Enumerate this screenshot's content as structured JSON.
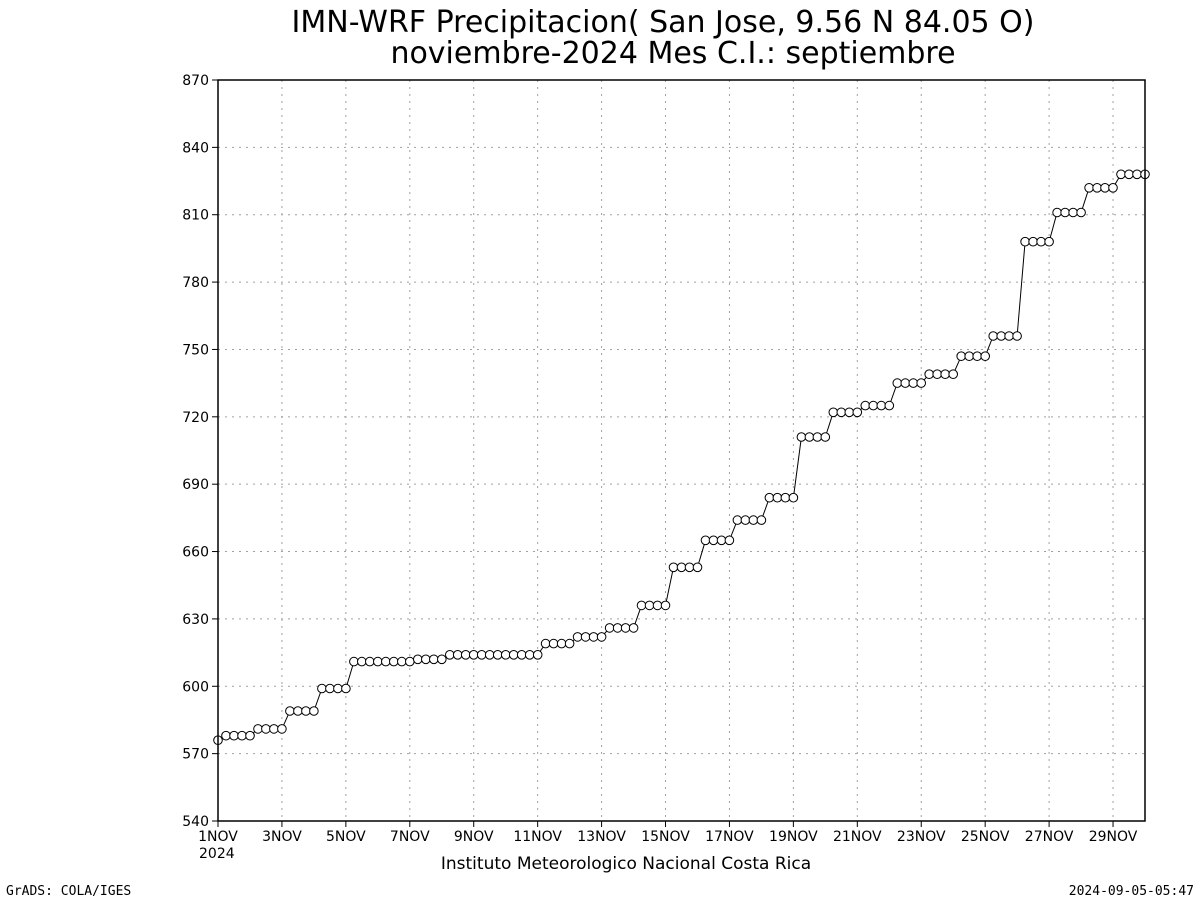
{
  "chart_data": {
    "type": "line",
    "title_line1": "IMN-WRF  Precipitacion( San Jose, 9.56  N 84.05  O)",
    "title_line2": "noviembre-2024 Mes C.I.: septiembre",
    "xlabel": "",
    "ylabel": "",
    "ylim": [
      540,
      870
    ],
    "yticks": [
      540,
      570,
      600,
      630,
      660,
      690,
      720,
      750,
      780,
      810,
      840,
      870
    ],
    "xlim": [
      1,
      30
    ],
    "xticks": [
      {
        "day": 1,
        "label": "1NOV"
      },
      {
        "day": 3,
        "label": "3NOV"
      },
      {
        "day": 5,
        "label": "5NOV"
      },
      {
        "day": 7,
        "label": "7NOV"
      },
      {
        "day": 9,
        "label": "9NOV"
      },
      {
        "day": 11,
        "label": "11NOV"
      },
      {
        "day": 13,
        "label": "13NOV"
      },
      {
        "day": 15,
        "label": "15NOV"
      },
      {
        "day": 17,
        "label": "17NOV"
      },
      {
        "day": 19,
        "label": "19NOV"
      },
      {
        "day": 21,
        "label": "21NOV"
      },
      {
        "day": 23,
        "label": "23NOV"
      },
      {
        "day": 25,
        "label": "25NOV"
      },
      {
        "day": 27,
        "label": "27NOV"
      },
      {
        "day": 29,
        "label": "29NOV"
      }
    ],
    "year_label": "2024",
    "grid": true,
    "marker": "open-circle",
    "series": [
      {
        "x_start_day": 1,
        "step_days": 0.25,
        "values": [
          576,
          578,
          578,
          578,
          578,
          581,
          581,
          581,
          581,
          589,
          589,
          589,
          589,
          599,
          599,
          599,
          599,
          611,
          611,
          611,
          611,
          611,
          611,
          611,
          611,
          612,
          612,
          612,
          612,
          614,
          614,
          614,
          614,
          614,
          614,
          614,
          614,
          614,
          614,
          614,
          614,
          619,
          619,
          619,
          619,
          622,
          622,
          622,
          622,
          626,
          626,
          626,
          626,
          636,
          636,
          636,
          636,
          653,
          653,
          653,
          653,
          665,
          665,
          665,
          665,
          674,
          674,
          674,
          674,
          684,
          684,
          684,
          684,
          711,
          711,
          711,
          711,
          722,
          722,
          722,
          722,
          725,
          725,
          725,
          725,
          735,
          735,
          735,
          735,
          739,
          739,
          739,
          739,
          747,
          747,
          747,
          747,
          756,
          756,
          756,
          756,
          798,
          798,
          798,
          798,
          811,
          811,
          811,
          811,
          822,
          822,
          822,
          822,
          828,
          828,
          828,
          828
        ]
      }
    ]
  },
  "footer": {
    "institution": "Instituto Meteorologico Nacional Costa Rica",
    "software": "GrADS: COLA/IGES",
    "timestamp": "2024-09-05-05:47"
  }
}
